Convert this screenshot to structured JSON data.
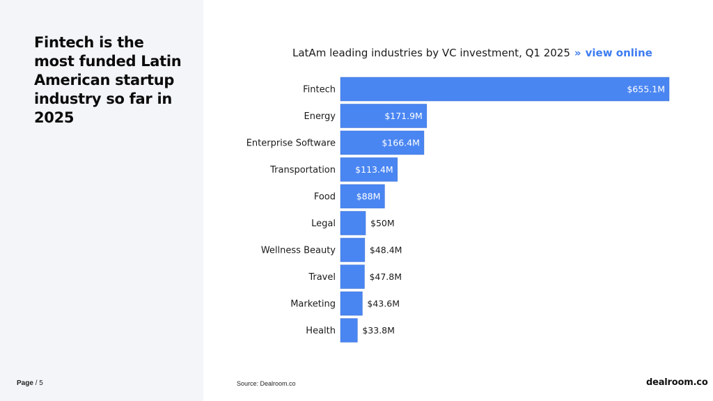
{
  "headline": "Fintech is the most funded Latin American startup industry so far in 2025",
  "footer": {
    "page_word": "Page",
    "page_sep": "/",
    "page_number": "5"
  },
  "chart_header": {
    "title": "LatAm leading industries by VC investment, Q1 2025",
    "arrows": "»",
    "link_label": "view online"
  },
  "source": "Source:  Dealroom.co",
  "brand": "dealroom.co",
  "colors": {
    "bar": "#4a86f2",
    "link": "#3d7cf2",
    "panel": "#f3f5f9"
  },
  "chart_data": {
    "type": "bar",
    "orientation": "horizontal",
    "title": "LatAm leading industries by VC investment, Q1 2025",
    "xlabel": "",
    "ylabel": "",
    "unit": "$M",
    "xlim": [
      0,
      655.1
    ],
    "grid": false,
    "categories": [
      "Fintech",
      "Energy",
      "Enterprise Software",
      "Transportation",
      "Food",
      "Legal",
      "Wellness Beauty",
      "Travel",
      "Marketing",
      "Health"
    ],
    "values": [
      655.1,
      171.9,
      166.4,
      113.4,
      88,
      50,
      48.4,
      47.8,
      43.6,
      33.8
    ],
    "labels": [
      "$655.1M",
      "$171.9M",
      "$166.4M",
      "$113.4M",
      "$88M",
      "$50M",
      "$48.4M",
      "$47.8M",
      "$43.6M",
      "$33.8M"
    ]
  }
}
